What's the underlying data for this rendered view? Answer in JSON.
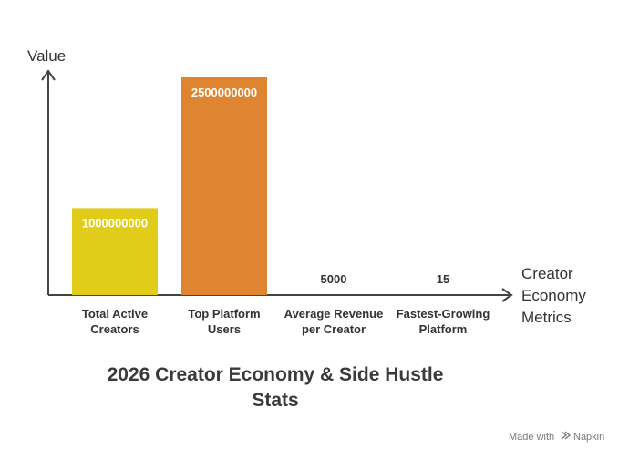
{
  "chart_data": {
    "type": "bar",
    "title": "2026 Creator Economy & Side Hustle Stats",
    "ylabel": "Value",
    "xlabel": "Creator Economy Metrics",
    "categories": [
      "Total Active Creators",
      "Top Platform Users",
      "Average Revenue per Creator",
      "Fastest-Growing Platform"
    ],
    "values": [
      1000000000,
      2500000000,
      5000,
      15
    ],
    "data_labels": [
      "1000000000",
      "2500000000",
      "5000",
      "15"
    ],
    "colors": [
      "#e1cc19",
      "#df8431",
      "#8fb0c8",
      "#8fb0c8"
    ],
    "ylim": [
      0,
      2500000000
    ],
    "grid": false,
    "legend": "none"
  },
  "footer": {
    "credit_prefix": "Made with",
    "credit_brand": "Napkin",
    "logo_icon": "napkin-logo-icon"
  }
}
